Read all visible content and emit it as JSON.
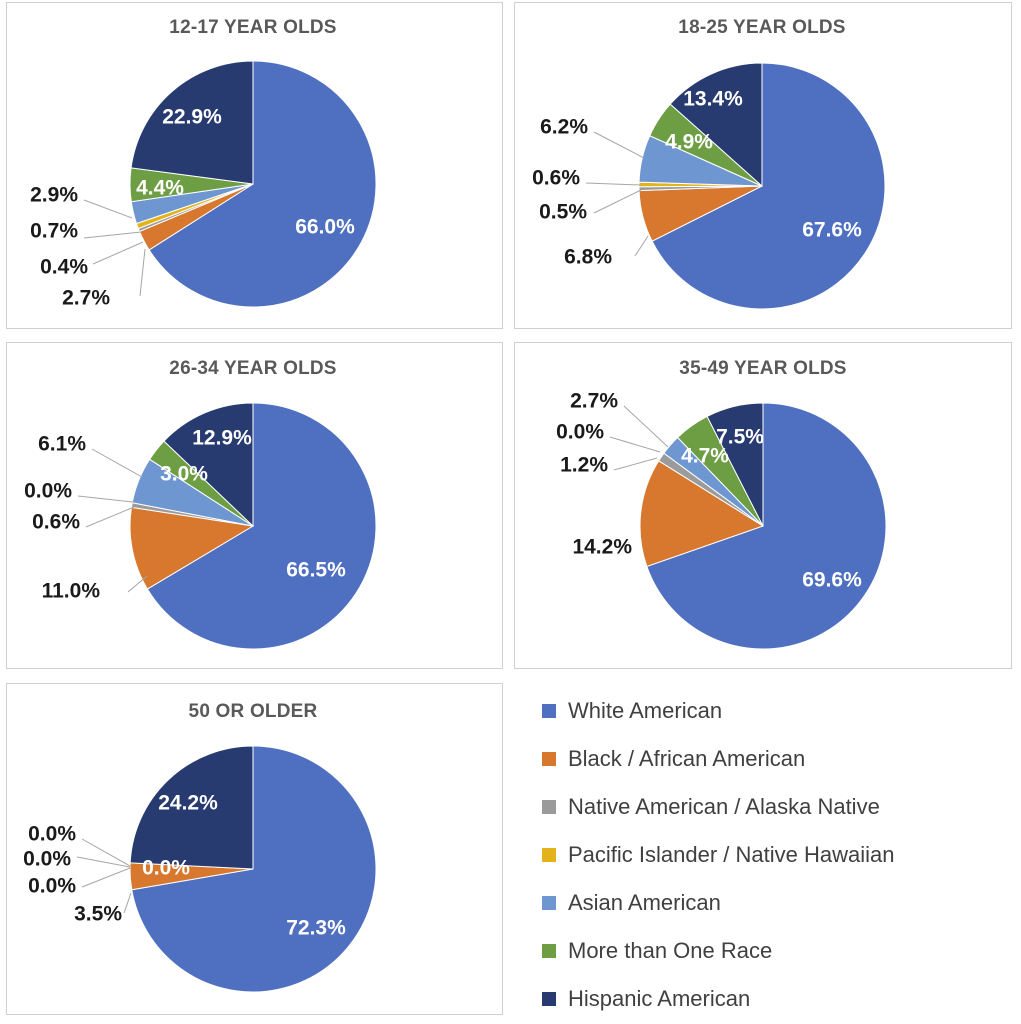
{
  "chart_data": [
    {
      "type": "pie",
      "title": "12-17 YEAR OLDS",
      "categories": [
        "White American",
        "Black / African American",
        "Native American / Alaska Native",
        "Pacific Islander / Native Hawaiian",
        "Asian American",
        "More than One Race",
        "Hispanic American"
      ],
      "values": [
        66.0,
        2.7,
        0.4,
        0.7,
        2.9,
        4.4,
        22.9
      ],
      "labels": [
        "66.0%",
        "2.7%",
        "0.4%",
        "0.7%",
        "2.9%",
        "4.4%",
        "22.9%"
      ]
    },
    {
      "type": "pie",
      "title": "18-25 YEAR OLDS",
      "categories": [
        "White American",
        "Black / African American",
        "Native American / Alaska Native",
        "Pacific Islander / Native Hawaiian",
        "Asian American",
        "More than One Race",
        "Hispanic American"
      ],
      "values": [
        67.6,
        6.8,
        0.5,
        0.6,
        6.2,
        4.9,
        13.4
      ],
      "labels": [
        "67.6%",
        "6.8%",
        "0.5%",
        "0.6%",
        "6.2%",
        "4.9%",
        "13.4%"
      ]
    },
    {
      "type": "pie",
      "title": "26-34 YEAR OLDS",
      "categories": [
        "White American",
        "Black / African American",
        "Native American / Alaska Native",
        "Pacific Islander / Native Hawaiian",
        "Asian American",
        "More than One Race",
        "Hispanic American"
      ],
      "values": [
        66.5,
        11.0,
        0.6,
        0.0,
        6.1,
        3.0,
        12.9
      ],
      "labels": [
        "66.5%",
        "11.0%",
        "0.6%",
        "0.0%",
        "6.1%",
        "3.0%",
        "12.9%"
      ]
    },
    {
      "type": "pie",
      "title": "35-49 YEAR OLDS",
      "categories": [
        "White American",
        "Black / African American",
        "Native American / Alaska Native",
        "Pacific Islander / Native Hawaiian",
        "Asian American",
        "More than One Race",
        "Hispanic American"
      ],
      "values": [
        69.6,
        14.2,
        1.2,
        0.0,
        2.7,
        4.7,
        7.5
      ],
      "labels": [
        "69.6%",
        "14.2%",
        "1.2%",
        "0.0%",
        "2.7%",
        "4.7%",
        "7.5%"
      ]
    },
    {
      "type": "pie",
      "title": "50 OR OLDER",
      "categories": [
        "White American",
        "Black / African American",
        "Native American / Alaska Native",
        "Pacific Islander / Native Hawaiian",
        "Asian American",
        "More than One Race",
        "Hispanic American"
      ],
      "values": [
        72.3,
        3.5,
        0.0,
        0.0,
        0.0,
        0.0,
        24.2
      ],
      "labels": [
        "72.3%",
        "3.5%",
        "0.0%",
        "0.0%",
        "0.0%",
        "0.0%",
        "24.2%"
      ]
    }
  ],
  "legend": {
    "items": [
      "White American",
      "Black / African American",
      "Native American / Alaska Native",
      "Pacific Islander / Native Hawaiian",
      "Asian American",
      "More than One Race",
      "Hispanic American"
    ],
    "colors": [
      "#4f6fc0",
      "#d8782f",
      "#9b9b9b",
      "#e2b31a",
      "#6e96d0",
      "#6d9e43",
      "#273b70"
    ]
  }
}
